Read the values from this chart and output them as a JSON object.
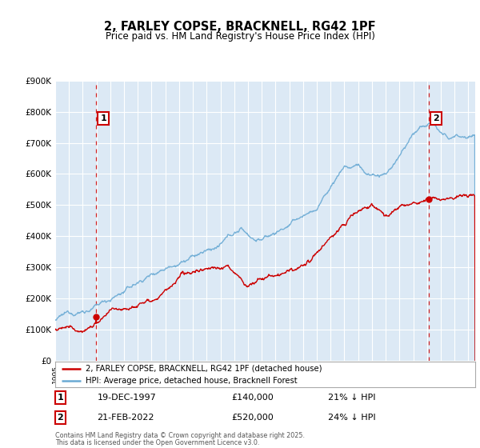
{
  "title": "2, FARLEY COPSE, BRACKNELL, RG42 1PF",
  "subtitle": "Price paid vs. HM Land Registry's House Price Index (HPI)",
  "background_color": "#dce9f5",
  "outer_bg_color": "#ffffff",
  "ylim": [
    0,
    900000
  ],
  "yticks": [
    0,
    100000,
    200000,
    300000,
    400000,
    500000,
    600000,
    700000,
    800000,
    900000
  ],
  "ytick_labels": [
    "£0",
    "£100K",
    "£200K",
    "£300K",
    "£400K",
    "£500K",
    "£600K",
    "£700K",
    "£800K",
    "£900K"
  ],
  "hpi_color": "#6aaad4",
  "price_color": "#cc0000",
  "annotation1_label": "1",
  "annotation1_date": "19-DEC-1997",
  "annotation1_price": 140000,
  "annotation1_year": 1997.97,
  "annotation1_pct": "21% ↓ HPI",
  "annotation2_label": "2",
  "annotation2_date": "21-FEB-2022",
  "annotation2_price": 520000,
  "annotation2_year": 2022.13,
  "annotation2_pct": "24% ↓ HPI",
  "legend_line1": "2, FARLEY COPSE, BRACKNELL, RG42 1PF (detached house)",
  "legend_line2": "HPI: Average price, detached house, Bracknell Forest",
  "footer1": "Contains HM Land Registry data © Crown copyright and database right 2025.",
  "footer2": "This data is licensed under the Open Government Licence v3.0.",
  "xmin": 1995.0,
  "xmax": 2025.5,
  "grid_color": "#ffffff",
  "dashed_color": "#cc0000"
}
